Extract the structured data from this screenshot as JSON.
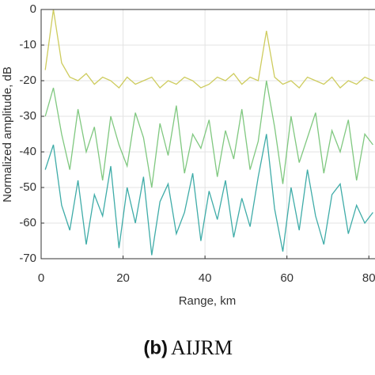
{
  "chart_data": {
    "type": "line",
    "ylabel": "Normalized amplitude, dB",
    "xlabel": "Range, km",
    "caption_label": "(b)",
    "caption_text": "AIJRM",
    "x": [
      1,
      3,
      5,
      7,
      9,
      11,
      13,
      15,
      17,
      19,
      21,
      23,
      25,
      27,
      29,
      31,
      33,
      35,
      37,
      39,
      41,
      43,
      45,
      47,
      49,
      51,
      53,
      55,
      57,
      59,
      61,
      63,
      65,
      67,
      69,
      71,
      73,
      75,
      77,
      79,
      81
    ],
    "series": [
      {
        "color": "#c9c74c",
        "values": [
          -17,
          0,
          -15,
          -19,
          -20,
          -18,
          -21,
          -19,
          -20,
          -22,
          -19,
          -21,
          -20,
          -19,
          -22,
          -20,
          -21,
          -19,
          -20,
          -22,
          -21,
          -19,
          -20,
          -18,
          -21,
          -19,
          -20,
          -6,
          -19,
          -21,
          -20,
          -22,
          -19,
          -20,
          -21,
          -19,
          -22,
          -20,
          -21,
          -19,
          -20
        ]
      },
      {
        "color": "#72c272",
        "values": [
          -30,
          -22,
          -35,
          -45,
          -28,
          -40,
          -33,
          -48,
          -30,
          -38,
          -44,
          -29,
          -36,
          -50,
          -32,
          -41,
          -27,
          -46,
          -35,
          -39,
          -31,
          -47,
          -34,
          -42,
          -28,
          -45,
          -37,
          -20,
          -33,
          -49,
          -30,
          -43,
          -36,
          -29,
          -46,
          -34,
          -40,
          -31,
          -48,
          -35,
          -38
        ]
      },
      {
        "color": "#2aa39e",
        "values": [
          -45,
          -38,
          -55,
          -62,
          -48,
          -66,
          -52,
          -58,
          -44,
          -67,
          -50,
          -60,
          -47,
          -69,
          -54,
          -49,
          -63,
          -57,
          -46,
          -65,
          -51,
          -59,
          -48,
          -64,
          -53,
          -61,
          -47,
          -35,
          -56,
          -68,
          -50,
          -62,
          -45,
          -58,
          -66,
          -52,
          -49,
          -63,
          -55,
          -60,
          -57
        ]
      }
    ],
    "xlim": [
      0,
      81.5
    ],
    "xticks": [
      0,
      20,
      40,
      60,
      80
    ],
    "ylim": [
      -70,
      0
    ],
    "yticks": [
      -70,
      -60,
      -50,
      -40,
      -30,
      -20,
      -10,
      0
    ],
    "grid": true
  }
}
